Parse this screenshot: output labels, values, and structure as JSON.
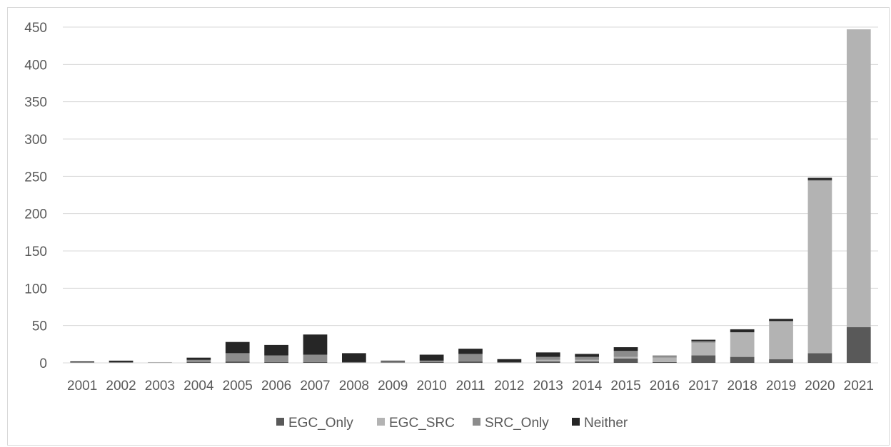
{
  "chart_data": {
    "type": "bar",
    "stacked": true,
    "title": "",
    "xlabel": "",
    "ylabel": "",
    "ylim": [
      0,
      450
    ],
    "yticks": [
      0,
      50,
      100,
      150,
      200,
      250,
      300,
      350,
      400,
      450
    ],
    "grid": true,
    "legend_position": "bottom",
    "categories": [
      "2001",
      "2002",
      "2003",
      "2004",
      "2005",
      "2006",
      "2007",
      "2008",
      "2009",
      "2010",
      "2011",
      "2012",
      "2013",
      "2014",
      "2015",
      "2016",
      "2017",
      "2018",
      "2019",
      "2020",
      "2021"
    ],
    "series": [
      {
        "name": "EGC_Only",
        "color": "#595959",
        "values": [
          0,
          0,
          0,
          1,
          2,
          1,
          1,
          0,
          0,
          1,
          2,
          0,
          2,
          2,
          6,
          1,
          10,
          8,
          5,
          13,
          48
        ]
      },
      {
        "name": "EGC_SRC",
        "color": "#b3b3b3",
        "values": [
          0,
          0,
          1,
          0,
          0,
          0,
          0,
          0,
          0,
          0,
          0,
          0,
          2,
          2,
          2,
          6,
          17,
          33,
          51,
          231,
          399
        ]
      },
      {
        "name": "SRC_Only",
        "color": "#8c8c8c",
        "values": [
          1,
          1,
          0,
          3,
          11,
          9,
          10,
          1,
          2,
          2,
          10,
          1,
          4,
          4,
          8,
          3,
          2,
          0,
          0,
          1,
          0
        ]
      },
      {
        "name": "Neither",
        "color": "#262626",
        "values": [
          1,
          2,
          0,
          3,
          15,
          14,
          27,
          12,
          1,
          8,
          7,
          4,
          6,
          4,
          5,
          0,
          2,
          4,
          3,
          3,
          0
        ]
      }
    ]
  }
}
